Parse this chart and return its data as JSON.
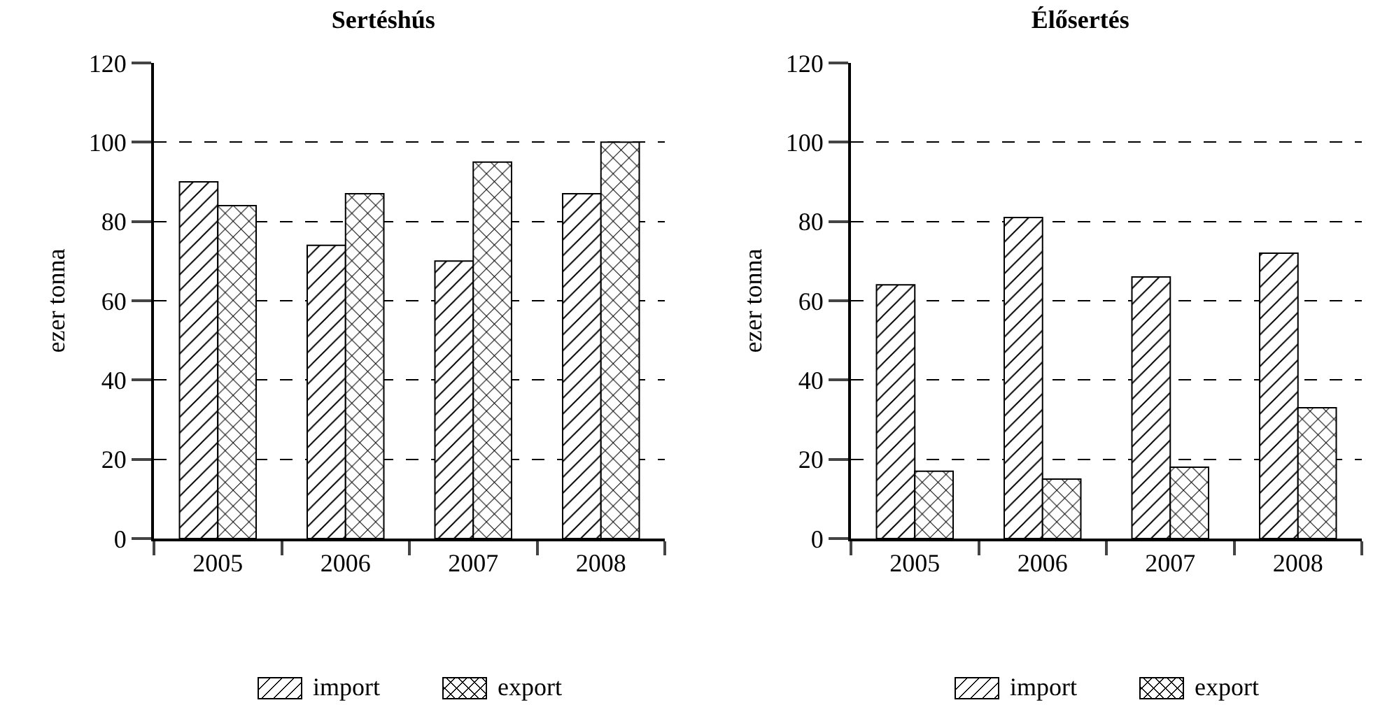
{
  "chart_data": [
    {
      "type": "bar",
      "title": "Sertéshús",
      "ylabel": "ezer tonna",
      "categories": [
        "2005",
        "2006",
        "2007",
        "2008"
      ],
      "series": [
        {
          "name": "import",
          "color": "#000000",
          "values": [
            90,
            74,
            70,
            87
          ]
        },
        {
          "name": "export",
          "color": "#000000",
          "values": [
            84,
            87,
            95,
            100
          ]
        }
      ],
      "ylim": [
        0,
        120
      ],
      "yticks": [
        0,
        20,
        40,
        60,
        80,
        100,
        120
      ],
      "grid": "y",
      "legend": "bottom"
    },
    {
      "type": "bar",
      "title": "Élősertés",
      "ylabel": "ezer tonna",
      "categories": [
        "2005",
        "2006",
        "2007",
        "2008"
      ],
      "series": [
        {
          "name": "import",
          "color": "#000000",
          "values": [
            64,
            81,
            66,
            72
          ]
        },
        {
          "name": "export",
          "color": "#000000",
          "values": [
            17,
            15,
            18,
            33
          ]
        }
      ],
      "ylim": [
        0,
        120
      ],
      "yticks": [
        0,
        20,
        40,
        60,
        80,
        100,
        120
      ],
      "grid": "y",
      "legend": "bottom"
    }
  ]
}
